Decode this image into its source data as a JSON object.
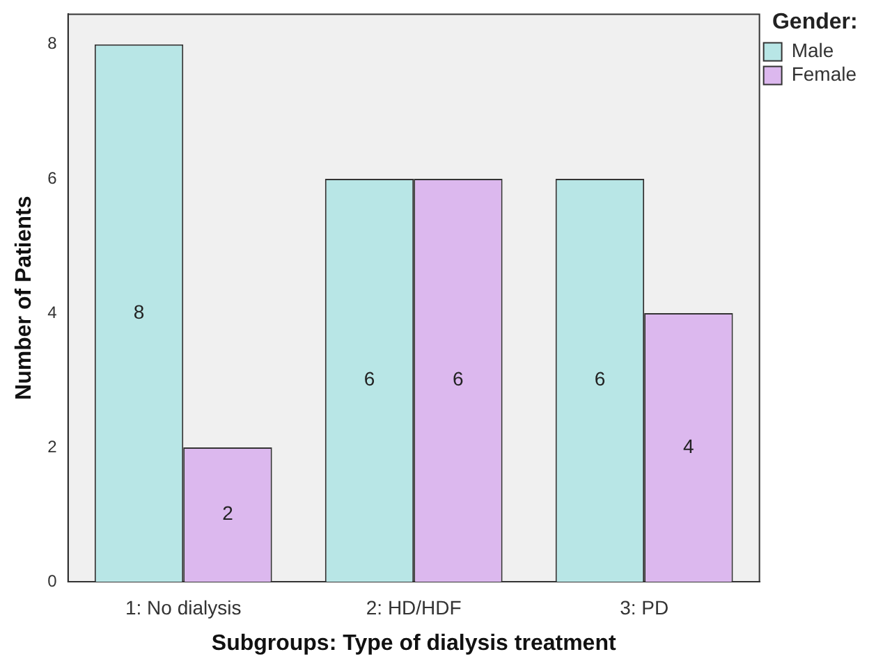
{
  "chart_data": {
    "type": "bar",
    "xlabel": "Subgroups: Type of dialysis treatment",
    "ylabel": "Number of Patients",
    "legend_title": "Gender:",
    "categories": [
      "1: No dialysis",
      "2: HD/HDF",
      "3: PD"
    ],
    "series": [
      {
        "name": "Male",
        "color": "#b8e6e6",
        "values": [
          8,
          6,
          6
        ]
      },
      {
        "name": "Female",
        "color": "#dcb8ee",
        "values": [
          2,
          6,
          4
        ]
      }
    ],
    "ylim": [
      0,
      8.45
    ],
    "yticks": [
      0,
      2,
      4,
      6,
      8
    ],
    "grid": false,
    "legend": "top right",
    "data_labels": true
  }
}
